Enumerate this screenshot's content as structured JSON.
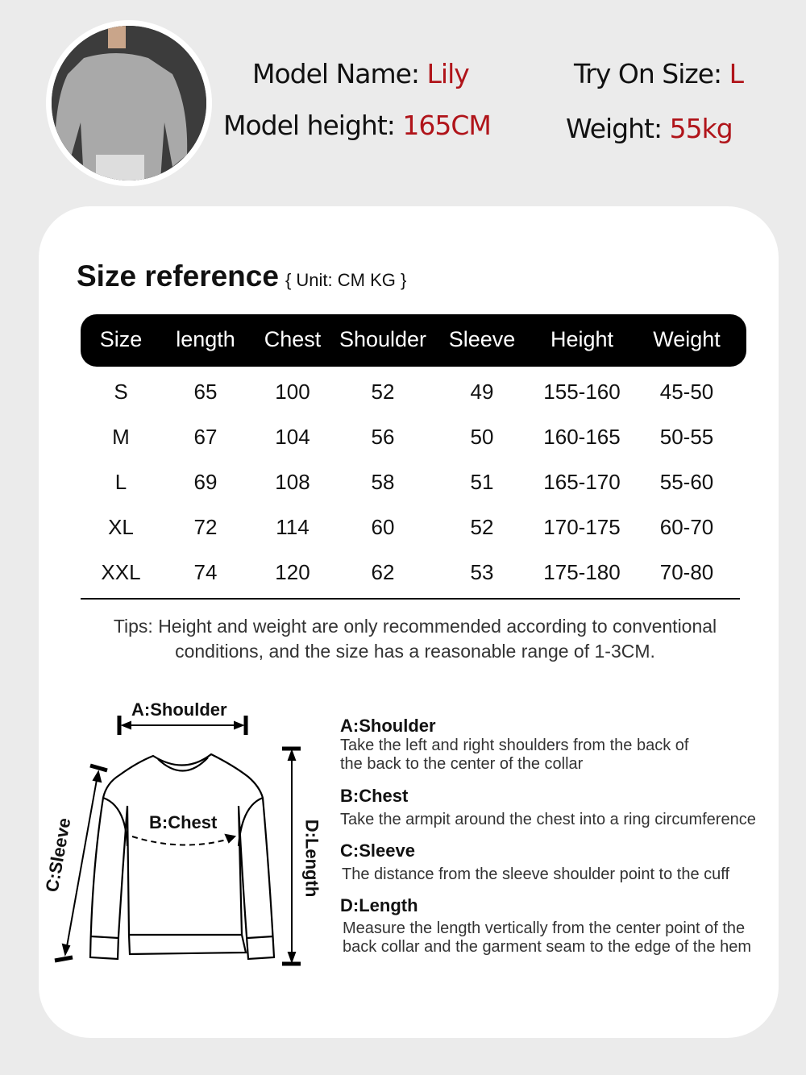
{
  "model": {
    "name_label": "Model Name:",
    "name": "Lily",
    "height_label": "Model height:",
    "height": "165CM",
    "size_label": "Try On Size:",
    "size": "L",
    "weight_label": "Weight:",
    "weight": "55kg"
  },
  "size_ref": {
    "title": "Size reference",
    "unit": "{ Unit: CM KG }",
    "headers": [
      "Size",
      "length",
      "Chest",
      "Shoulder",
      "Sleeve",
      "Height",
      "Weight"
    ],
    "rows": [
      [
        "S",
        "65",
        "100",
        "52",
        "49",
        "155-160",
        "45-50"
      ],
      [
        "M",
        "67",
        "104",
        "56",
        "50",
        "160-165",
        "50-55"
      ],
      [
        "L",
        "69",
        "108",
        "58",
        "51",
        "165-170",
        "55-60"
      ],
      [
        "XL",
        "72",
        "114",
        "60",
        "52",
        "170-175",
        "60-70"
      ],
      [
        "XXL",
        "74",
        "120",
        "62",
        "53",
        "175-180",
        "70-80"
      ]
    ]
  },
  "tips": "Tips: Height and weight are only recommended according to conventional conditions, and the size has a reasonable range of 1-3CM.",
  "diagram": {
    "a": "A:Shoulder",
    "b": "B:Chest",
    "c": "C:Sleeve",
    "d": "D:Length"
  },
  "descriptions": [
    {
      "title": "A:Shoulder",
      "lines": [
        "Take the left and right shoulders from the back of",
        "the back to the center of the collar"
      ]
    },
    {
      "title": "B:Chest",
      "lines": [
        "Take the armpit around the chest into a ring circumference"
      ]
    },
    {
      "title": "C:Sleeve",
      "lines": [
        "The distance from the sleeve shoulder point to the cuff"
      ]
    },
    {
      "title": "D:Length",
      "lines": [
        "Measure the length vertically from the center point of the",
        "back collar and the garment seam to the edge of the hem"
      ]
    }
  ]
}
